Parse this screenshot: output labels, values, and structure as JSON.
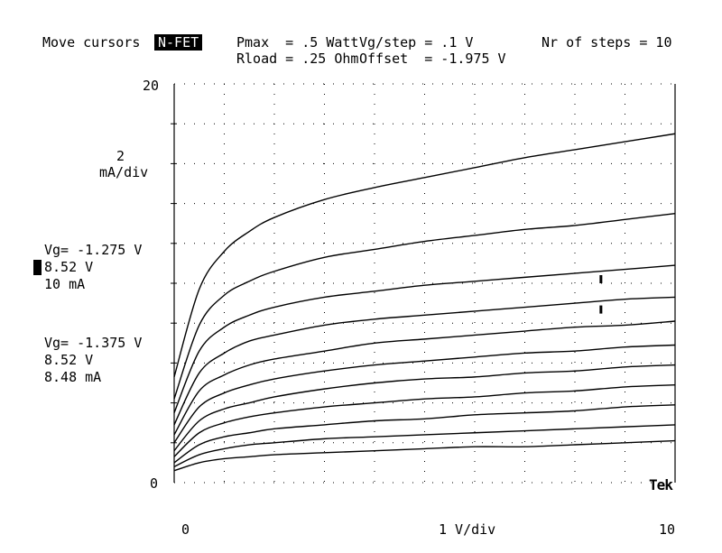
{
  "header": {
    "move_label": "Move cursors",
    "device_badge": "N-FET",
    "pmax": "Pmax  = .5 Watt",
    "rload": "Rload = .25 Ohm",
    "vg_step": "Vg/step = .1 V",
    "offset": "Offset  = -1.975 V",
    "steps": "Nr of steps = 10"
  },
  "readouts": {
    "vdiv_value": "2",
    "vdiv_unit": "mA/div",
    "cursor1_vg": "Vg= -1.275 V",
    "cursor1_v": "8.52 V",
    "cursor1_i": "10 mA",
    "cursor2_vg": "Vg= -1.375 V",
    "cursor2_v": "8.52 V",
    "cursor2_i": "8.48 mA"
  },
  "brand": "Tek",
  "chart_data": {
    "type": "line",
    "xlabel": "1 V/div",
    "ylabel": "2 mA/div",
    "x_ticks": [
      "0",
      "10"
    ],
    "y_ticks": [
      "20",
      "0"
    ],
    "xlim": [
      0,
      10
    ],
    "ylim": [
      0,
      20
    ],
    "grid": true,
    "x": [
      0,
      0.5,
      1,
      1.5,
      2,
      3,
      4,
      5,
      6,
      7,
      8,
      9,
      10
    ],
    "series": [
      {
        "values": [
          0.6,
          1.0,
          1.2,
          1.3,
          1.4,
          1.5,
          1.6,
          1.7,
          1.8,
          1.8,
          1.9,
          2.0,
          2.1
        ]
      },
      {
        "values": [
          0.8,
          1.4,
          1.7,
          1.9,
          2.0,
          2.2,
          2.3,
          2.4,
          2.5,
          2.6,
          2.7,
          2.8,
          2.9
        ]
      },
      {
        "values": [
          1.0,
          1.9,
          2.3,
          2.5,
          2.7,
          2.9,
          3.1,
          3.2,
          3.4,
          3.5,
          3.6,
          3.8,
          3.9
        ]
      },
      {
        "values": [
          1.3,
          2.5,
          3.0,
          3.3,
          3.5,
          3.8,
          4.0,
          4.2,
          4.3,
          4.5,
          4.6,
          4.8,
          4.9
        ]
      },
      {
        "values": [
          1.6,
          3.1,
          3.7,
          4.0,
          4.3,
          4.7,
          5.0,
          5.2,
          5.3,
          5.5,
          5.6,
          5.8,
          5.9
        ]
      },
      {
        "values": [
          2.0,
          3.8,
          4.5,
          4.9,
          5.2,
          5.6,
          5.9,
          6.1,
          6.3,
          6.5,
          6.6,
          6.8,
          6.9
        ]
      },
      {
        "values": [
          2.4,
          4.6,
          5.4,
          5.9,
          6.2,
          6.6,
          7.0,
          7.2,
          7.4,
          7.6,
          7.8,
          7.9,
          8.1
        ]
      },
      {
        "values": [
          2.9,
          5.5,
          6.5,
          7.1,
          7.4,
          7.9,
          8.2,
          8.4,
          8.6,
          8.8,
          9.0,
          9.2,
          9.3
        ]
      },
      {
        "values": [
          3.5,
          6.6,
          7.8,
          8.4,
          8.8,
          9.3,
          9.6,
          9.9,
          10.1,
          10.3,
          10.5,
          10.7,
          10.9
        ]
      },
      {
        "values": [
          4.2,
          7.9,
          9.4,
          10.1,
          10.6,
          11.3,
          11.7,
          12.1,
          12.4,
          12.7,
          12.9,
          13.2,
          13.5
        ]
      },
      {
        "values": [
          5.3,
          9.7,
          11.6,
          12.6,
          13.3,
          14.2,
          14.8,
          15.3,
          15.8,
          16.3,
          16.7,
          17.1,
          17.5
        ]
      }
    ],
    "cursors": [
      {
        "x": 8.52,
        "y": 10.0
      },
      {
        "x": 8.52,
        "y": 8.48
      }
    ]
  }
}
